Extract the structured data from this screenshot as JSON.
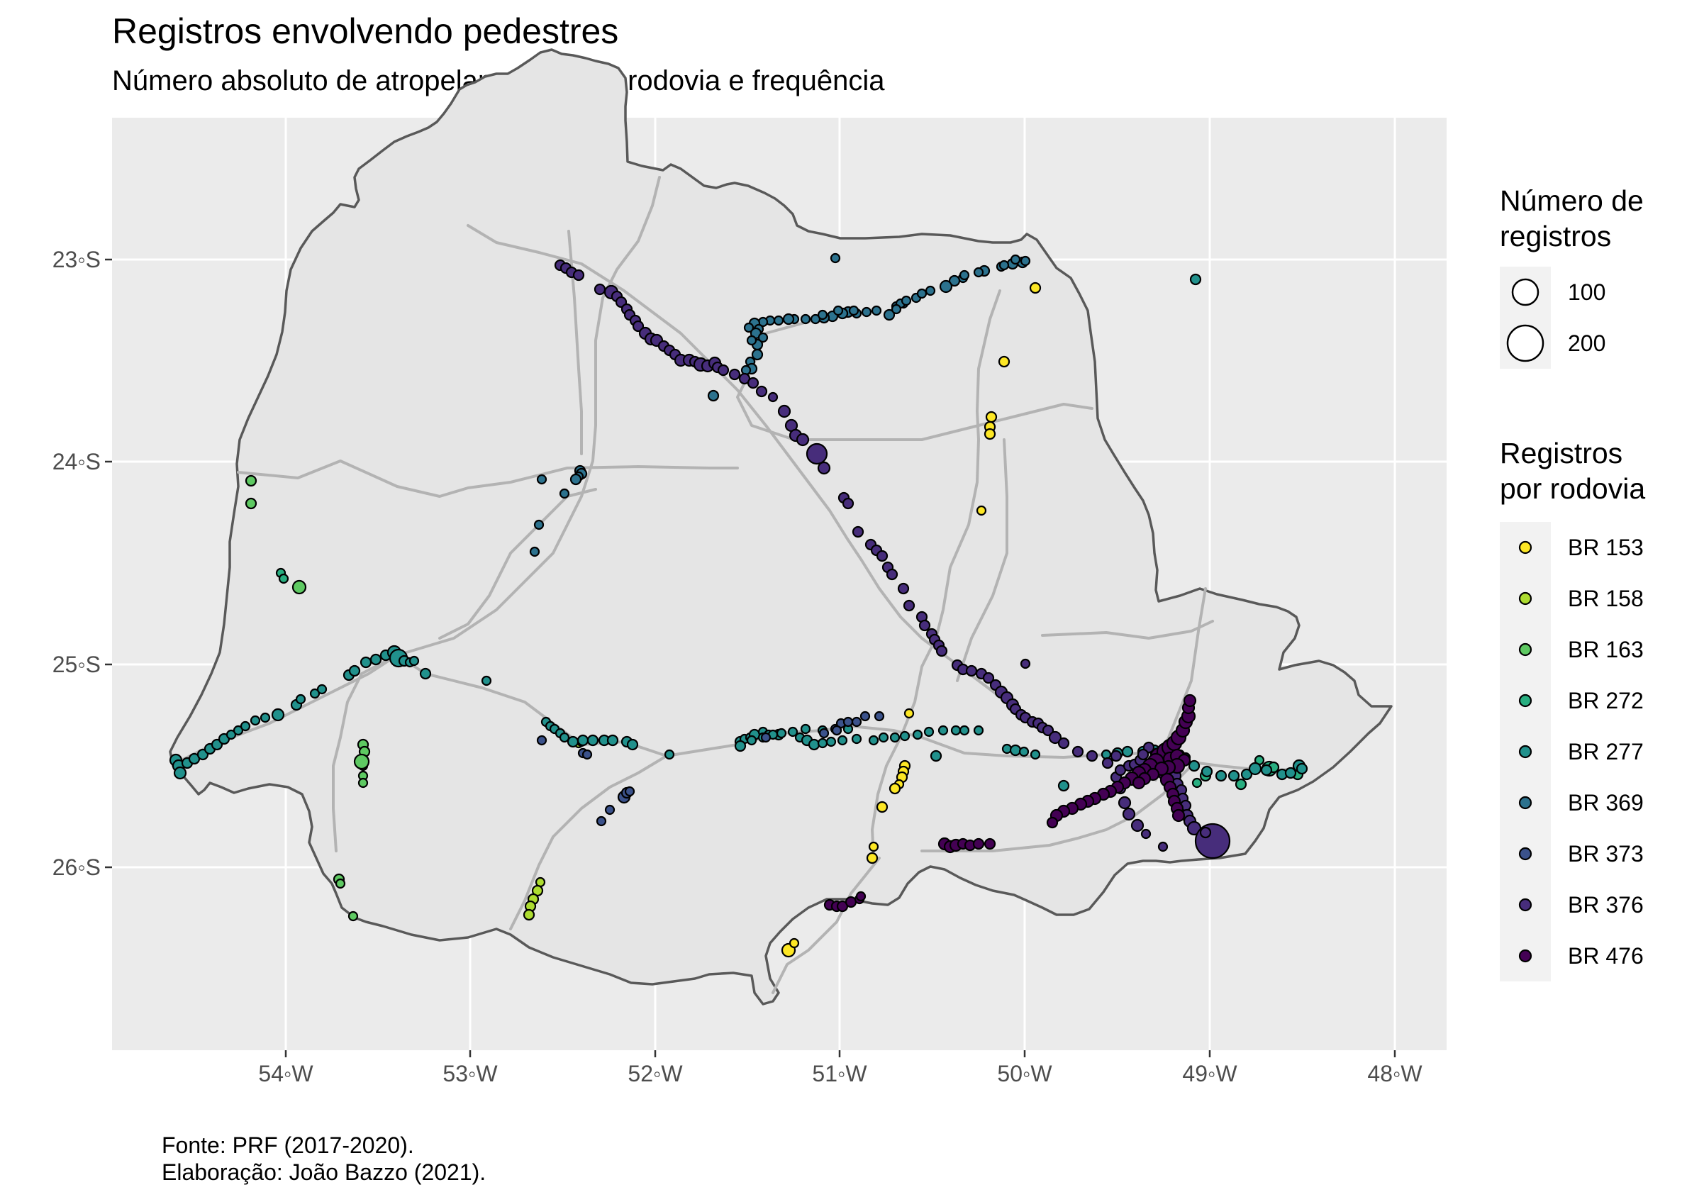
{
  "title": "Registros envolvendo pedestres",
  "subtitle": "Número absoluto de atropelamentos por rodovia e frequência",
  "caption": "Fonte: PRF (2017-2020).\nElaboração: João Bazzo (2021).",
  "axes": {
    "x_ticks": [
      "54◦W",
      "53◦W",
      "52◦W",
      "51◦W",
      "50◦W",
      "49◦W",
      "48◦W"
    ],
    "y_ticks": [
      "23◦S",
      "24◦S",
      "25◦S",
      "26◦S"
    ],
    "panel_background": "#ebebeb",
    "grid_color": "#ffffff"
  },
  "legend_size": {
    "title": "Número de\nregistros",
    "entries": [
      {
        "label": "100",
        "value": 100
      },
      {
        "label": "200",
        "value": 200
      }
    ]
  },
  "legend_color": {
    "title": "Registros\npor rodovia",
    "entries": [
      {
        "label": "BR 153",
        "color": "#fde725"
      },
      {
        "label": "BR 158",
        "color": "#addc30"
      },
      {
        "label": "BR 163",
        "color": "#5ec962"
      },
      {
        "label": "BR 272",
        "color": "#28ae80"
      },
      {
        "label": "BR 277",
        "color": "#21918c"
      },
      {
        "label": "BR 369",
        "color": "#2c728e"
      },
      {
        "label": "BR 373",
        "color": "#3b528b"
      },
      {
        "label": "BR 376",
        "color": "#472d7b"
      },
      {
        "label": "BR 476",
        "color": "#440154"
      }
    ]
  },
  "map": {
    "region_fill": "#e5e5e5",
    "border_color": "#595959",
    "road_color": "#b3b3b3"
  }
}
